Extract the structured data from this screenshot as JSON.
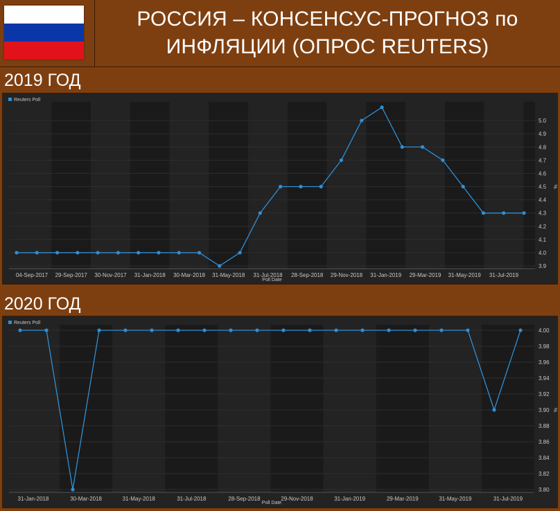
{
  "header": {
    "title": "РОССИЯ – КОНСЕНСУС-ПРОГНОЗ по ИНФЛЯЦИИ (ОПРОС REUTERS)",
    "flag_colors": [
      "#ffffff",
      "#0b36a8",
      "#e2121b"
    ]
  },
  "sections": [
    {
      "label": "2019 ГОД"
    },
    {
      "label": "2020 ГОД"
    }
  ],
  "colors": {
    "line": "#2f8fd6",
    "band_dark": "#1a1a1a",
    "band_light": "#232323",
    "text": "#c8c8c8"
  },
  "chart_data": [
    {
      "type": "line",
      "legend": "Reuters Poll",
      "xlabel": "Poll Date",
      "ylabel": "%",
      "ylim": [
        3.9,
        5.1
      ],
      "yticks": [
        "3.9",
        "4.0",
        "4.1",
        "4.2",
        "4.3",
        "4.4",
        "4.5",
        "4.6",
        "4.7",
        "4.8",
        "4.9",
        "5.0"
      ],
      "xticks": [
        "04-Sep-2017",
        "29-Sep-2017",
        "30-Nov-2017",
        "31-Jan-2018",
        "30-Mar-2018",
        "31-May-2018",
        "31-Jul-2018",
        "28-Sep-2018",
        "29-Nov-2018",
        "31-Jan-2019",
        "29-Mar-2019",
        "31-May-2019",
        "31-Jul-2019"
      ],
      "values": [
        4.0,
        4.0,
        4.0,
        4.0,
        4.0,
        4.0,
        4.0,
        4.0,
        4.0,
        4.0,
        3.9,
        4.0,
        4.3,
        4.5,
        4.5,
        4.5,
        4.7,
        5.0,
        5.1,
        4.8,
        4.8,
        4.7,
        4.5,
        4.3,
        4.3,
        4.3
      ]
    },
    {
      "type": "line",
      "legend": "Reuters Poll",
      "xlabel": "Poll Date",
      "ylabel": "%",
      "ylim": [
        3.8,
        4.0
      ],
      "yticks": [
        "3.80",
        "3.82",
        "3.84",
        "3.86",
        "3.88",
        "3.90",
        "3.92",
        "3.94",
        "3.96",
        "3.98",
        "4.00"
      ],
      "xticks": [
        "31-Jan-2018",
        "30-Mar-2018",
        "31-May-2018",
        "31-Jul-2018",
        "28-Sep-2018",
        "29-Nov-2018",
        "31-Jan-2019",
        "29-Mar-2019",
        "31-May-2019",
        "31-Jul-2019"
      ],
      "values": [
        4.0,
        4.0,
        3.8,
        4.0,
        4.0,
        4.0,
        4.0,
        4.0,
        4.0,
        4.0,
        4.0,
        4.0,
        4.0,
        4.0,
        4.0,
        4.0,
        4.0,
        4.0,
        3.9,
        4.0
      ]
    }
  ]
}
